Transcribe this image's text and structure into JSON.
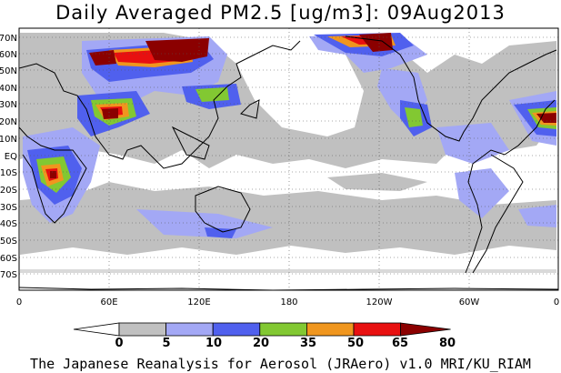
{
  "title": "Daily Averaged PM2.5 [ug/m3]: 09Aug2013",
  "credit": "The Japanese Reanalysis for Aerosol (JRAero) v1.0 MRI/KU_RIAM",
  "map": {
    "lat_labels": [
      "70N",
      "60N",
      "50N",
      "40N",
      "30N",
      "20N",
      "10N",
      "EQ",
      "10S",
      "20S",
      "30S",
      "40S",
      "50S",
      "60S",
      "70S"
    ],
    "lon_labels": [
      "0",
      "60E",
      "120E",
      "180",
      "120W",
      "60W",
      "0"
    ]
  },
  "colorbar": {
    "levels": [
      "0",
      "5",
      "10",
      "20",
      "35",
      "50",
      "65",
      "80"
    ],
    "colors": [
      "#ffffff",
      "#c0c0c0",
      "#a3a8f5",
      "#5060ee",
      "#82c832",
      "#f0961e",
      "#e81010",
      "#8b0000"
    ]
  }
}
